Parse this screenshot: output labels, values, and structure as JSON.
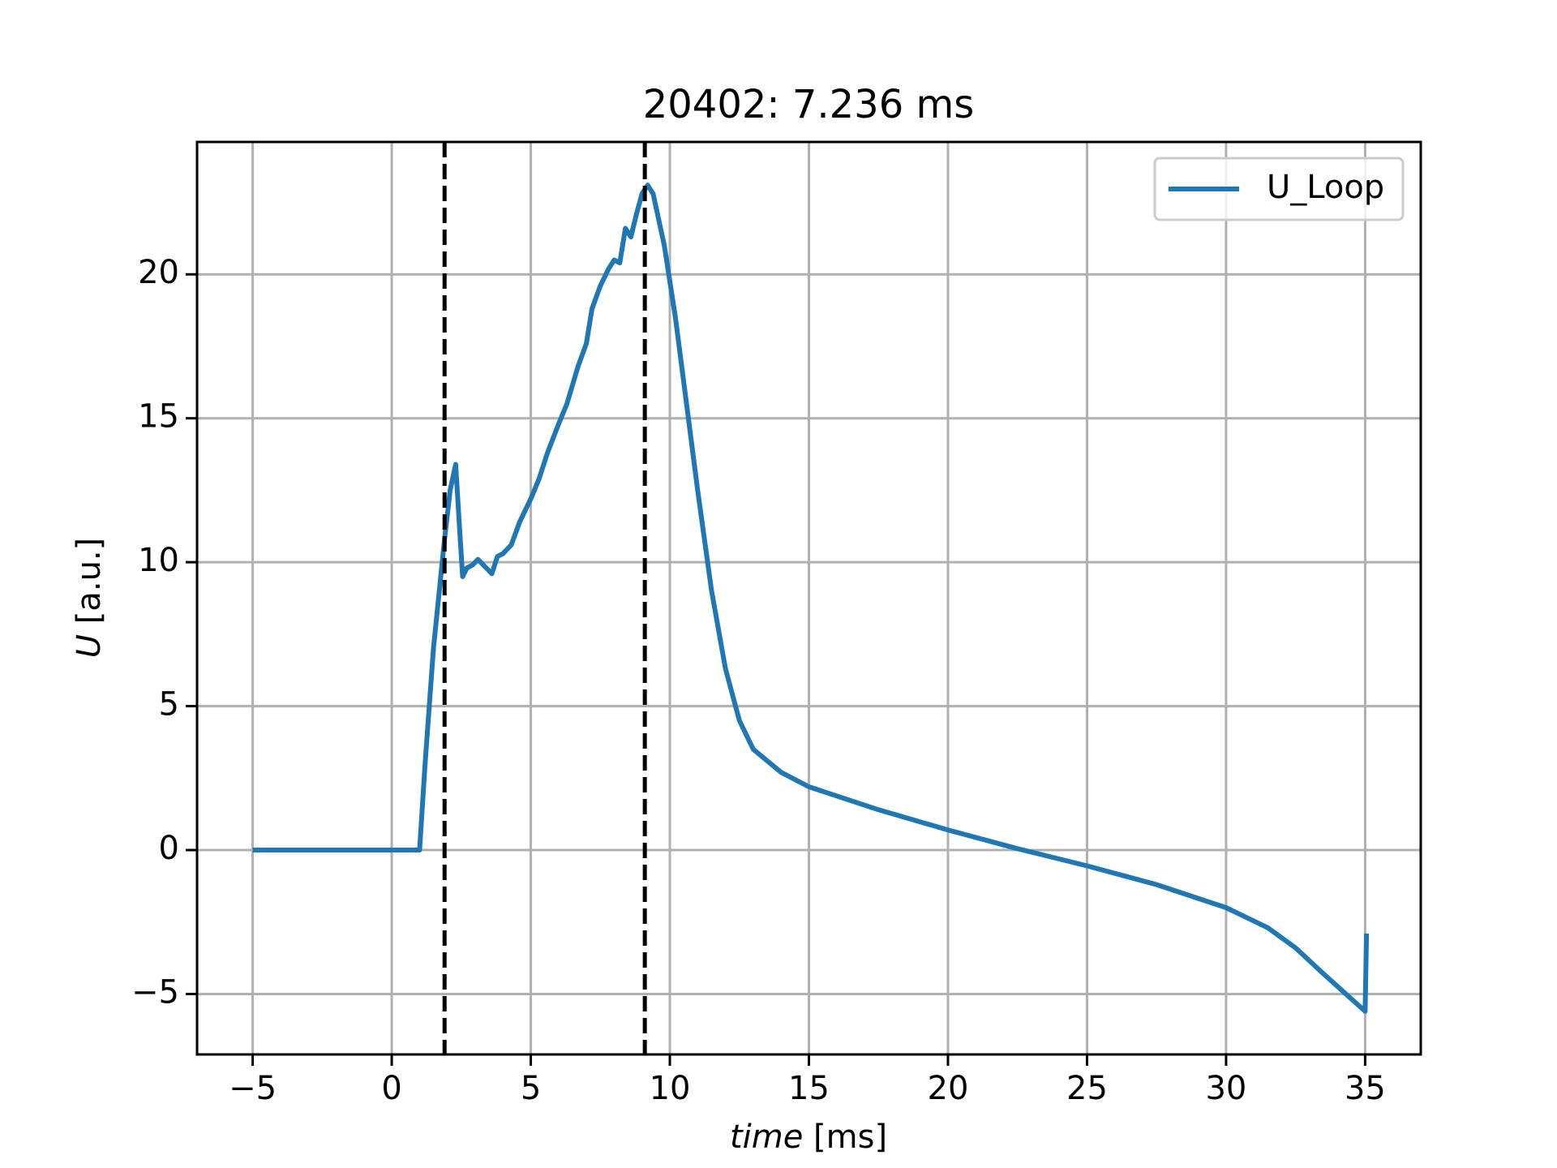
{
  "chart_data": {
    "type": "line",
    "title": "20402: 7.236 ms",
    "xlabel_var": "time",
    "xlabel_unit": "[ms]",
    "ylabel_var": "U",
    "ylabel_unit": "[a.u.]",
    "xlim": [
      -7,
      37
    ],
    "ylim": [
      -7.1,
      24.6
    ],
    "xticks": [
      {
        "value": -5,
        "label": "−5"
      },
      0,
      5,
      10,
      15,
      20,
      25,
      30,
      35
    ],
    "yticks": [
      {
        "value": -5,
        "label": "−5"
      },
      0,
      5,
      10,
      15,
      20
    ],
    "grid": true,
    "legend": "upper right",
    "vlines": [
      1.9,
      9.1
    ],
    "vline_color": "#000000",
    "series": [
      {
        "name": "U_Loop",
        "color": "#1f77b4",
        "x": [
          -5,
          0,
          1.0,
          1.2,
          1.5,
          1.9,
          2.1,
          2.3,
          2.45,
          2.55,
          2.7,
          2.9,
          3.1,
          3.3,
          3.6,
          3.8,
          4.0,
          4.3,
          4.6,
          5,
          5.3,
          5.6,
          6,
          6.3,
          6.7,
          7,
          7.2,
          7.5,
          7.8,
          8,
          8.2,
          8.4,
          8.6,
          8.8,
          9.0,
          9.2,
          9.4,
          9.8,
          10.2,
          10.6,
          11,
          11.5,
          12,
          12.5,
          13,
          14,
          15,
          17.5,
          20,
          22.5,
          25,
          27.5,
          30,
          31.5,
          32.5,
          33.5,
          35,
          35.05
        ],
        "values": [
          0,
          0,
          0,
          3,
          7,
          10.8,
          12.5,
          13.4,
          11,
          9.5,
          9.8,
          9.9,
          10.1,
          9.9,
          9.6,
          10.2,
          10.3,
          10.6,
          11.4,
          12.2,
          12.9,
          13.8,
          14.8,
          15.5,
          16.8,
          17.6,
          18.8,
          19.6,
          20.2,
          20.5,
          20.4,
          21.6,
          21.3,
          22.1,
          22.8,
          23.1,
          22.8,
          21,
          18.5,
          15.5,
          12.5,
          9,
          6.3,
          4.5,
          3.5,
          2.7,
          2.2,
          1.4,
          0.7,
          0.05,
          -0.55,
          -1.2,
          -2.0,
          -2.7,
          -3.4,
          -4.3,
          -5.6,
          -2.9
        ]
      }
    ]
  }
}
